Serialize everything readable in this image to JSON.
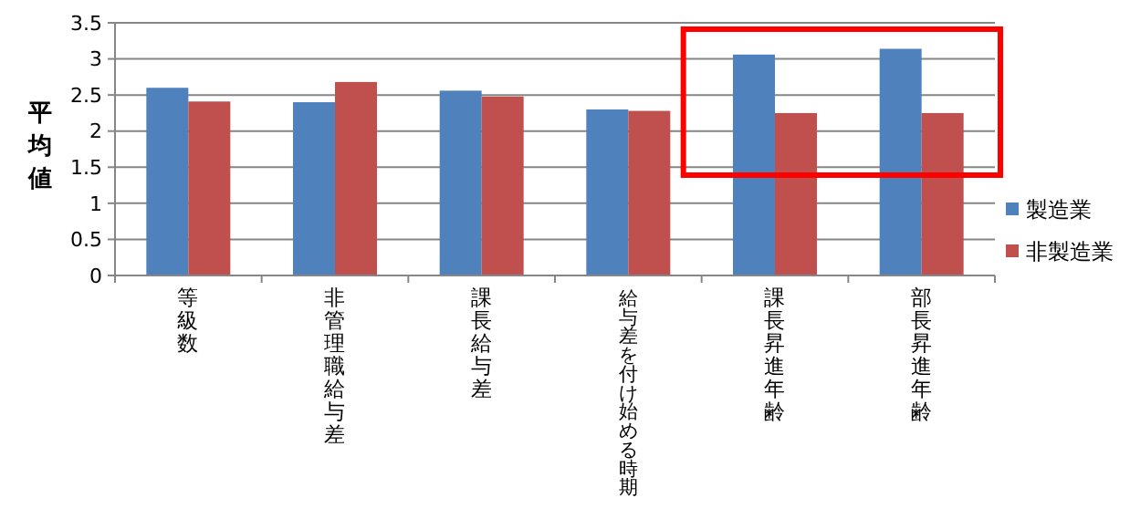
{
  "chart_data": {
    "type": "bar",
    "ylabel": "平均値",
    "categories": [
      "等級数",
      "非管理職給与差",
      "課長給与差",
      "給与差を付け始める時期",
      "課長昇進年齢",
      "部長昇進年齢"
    ],
    "series": [
      {
        "name": "製造業",
        "color": "#4f81bd",
        "values": [
          2.6,
          2.4,
          2.56,
          2.3,
          3.06,
          3.14
        ]
      },
      {
        "name": "非製造業",
        "color": "#c0504d",
        "values": [
          2.41,
          2.68,
          2.48,
          2.28,
          2.25,
          2.25
        ]
      }
    ],
    "ylim": [
      0,
      3.5
    ],
    "yticks": [
      0,
      0.5,
      1,
      1.5,
      2,
      2.5,
      3,
      3.5
    ],
    "grid": "y",
    "legend": "right"
  }
}
